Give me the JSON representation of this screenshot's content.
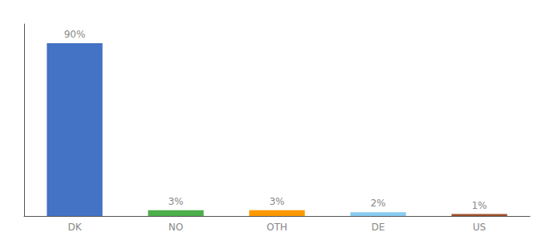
{
  "chart_data": {
    "type": "bar",
    "categories": [
      "DK",
      "NO",
      "OTH",
      "DE",
      "US"
    ],
    "values": [
      90,
      3,
      3,
      2,
      1
    ],
    "value_labels": [
      "90%",
      "3%",
      "3%",
      "2%",
      "1%"
    ],
    "data_labels": true,
    "colors": [
      "#4472c4",
      "#4daf4a",
      "#ff9900",
      "#88ccee",
      "#a0522d"
    ],
    "ylim": [
      0,
      100
    ],
    "grid": false,
    "tick_labels": "x"
  }
}
